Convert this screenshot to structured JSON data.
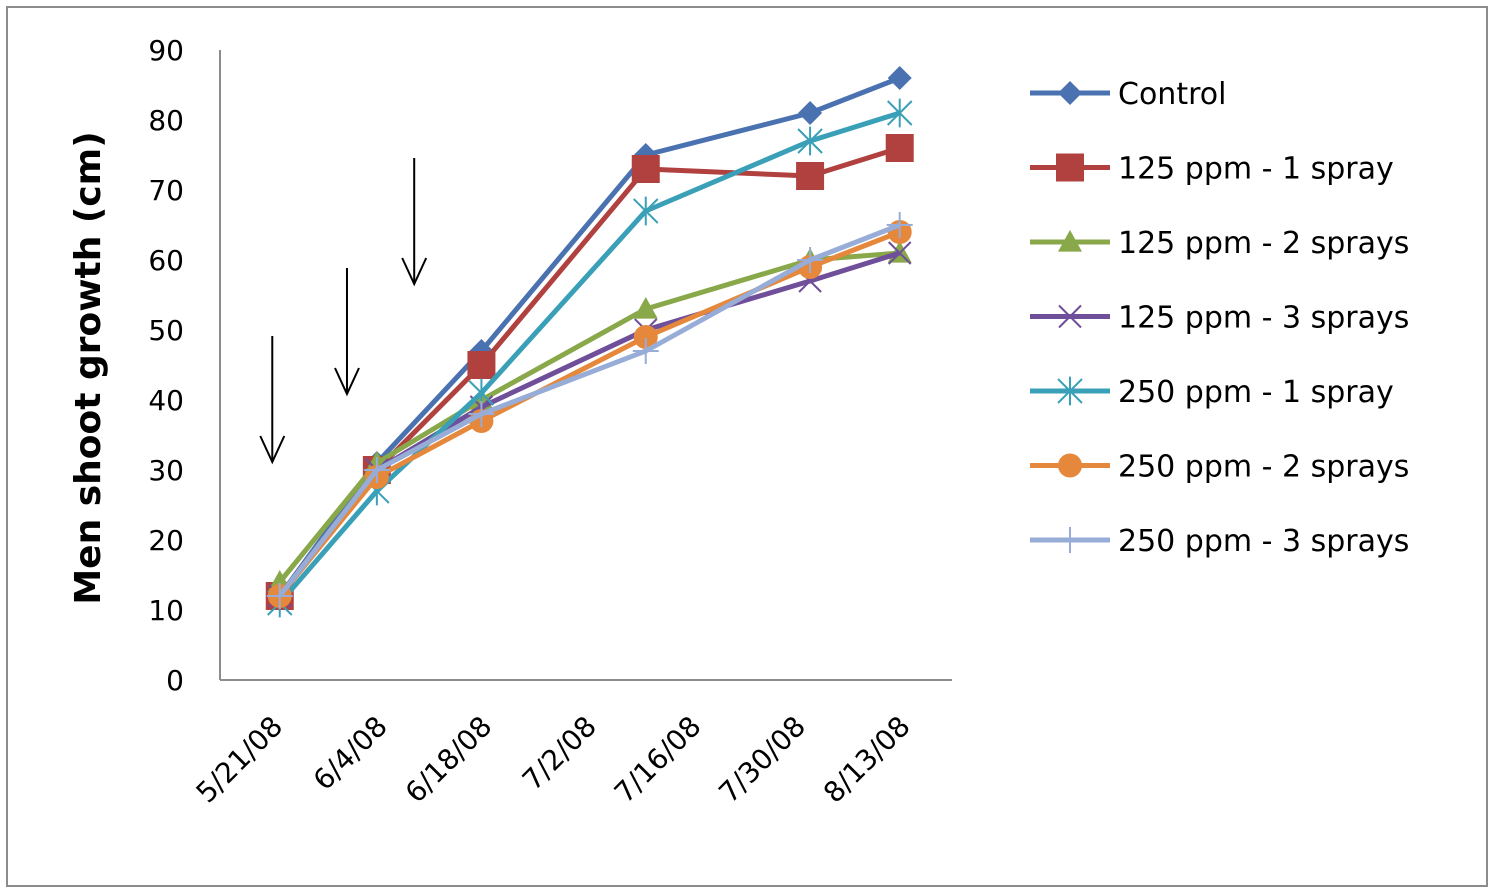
{
  "chart_data": {
    "type": "line",
    "ylabel": "Men shoot growth (cm)",
    "xlabel": "",
    "ylim": [
      0,
      90
    ],
    "yticks": [
      0,
      10,
      20,
      30,
      40,
      50,
      60,
      70,
      80,
      90
    ],
    "xlim": [
      "2008-05-21",
      "2008-08-27"
    ],
    "xtick_labels": [
      "5/21/08",
      "6/4/08",
      "6/18/08",
      "7/2/08",
      "7/16/08",
      "7/30/08",
      "8/13/08"
    ],
    "x": [
      "2008-05-29",
      "2008-06-11",
      "2008-06-25",
      "2008-07-17",
      "2008-08-08",
      "2008-08-20"
    ],
    "series": [
      {
        "name": "Control",
        "color": "#4a72b0",
        "marker": "diamond",
        "values": [
          12,
          31,
          47,
          75,
          81,
          86
        ]
      },
      {
        "name": "125 ppm - 1 spray",
        "color": "#b0413e",
        "marker": "square",
        "values": [
          12,
          30,
          45,
          73,
          72,
          76
        ]
      },
      {
        "name": "125 ppm - 2 sprays",
        "color": "#88a84a",
        "marker": "triangle",
        "values": [
          14,
          31,
          40,
          53,
          60,
          61
        ]
      },
      {
        "name": "125 ppm - 3 sprays",
        "color": "#6f4f9a",
        "marker": "x",
        "values": [
          12,
          30,
          39,
          50,
          57,
          61
        ]
      },
      {
        "name": "250 ppm - 1 spray",
        "color": "#3aa0b8",
        "marker": "star",
        "values": [
          11,
          27,
          41,
          67,
          77,
          81
        ]
      },
      {
        "name": "250 ppm - 2 sprays",
        "color": "#e5883b",
        "marker": "circle",
        "values": [
          12,
          29,
          37,
          49,
          59,
          64
        ]
      },
      {
        "name": "250 ppm - 3 sprays",
        "color": "#97acd6",
        "marker": "plus",
        "values": [
          12,
          30,
          38,
          47,
          60,
          65
        ]
      }
    ],
    "annotations": {
      "spray_arrows": [
        "2008-05-28",
        "2008-06-07",
        "2008-06-16"
      ]
    },
    "grid": false,
    "legend_position": "right"
  }
}
